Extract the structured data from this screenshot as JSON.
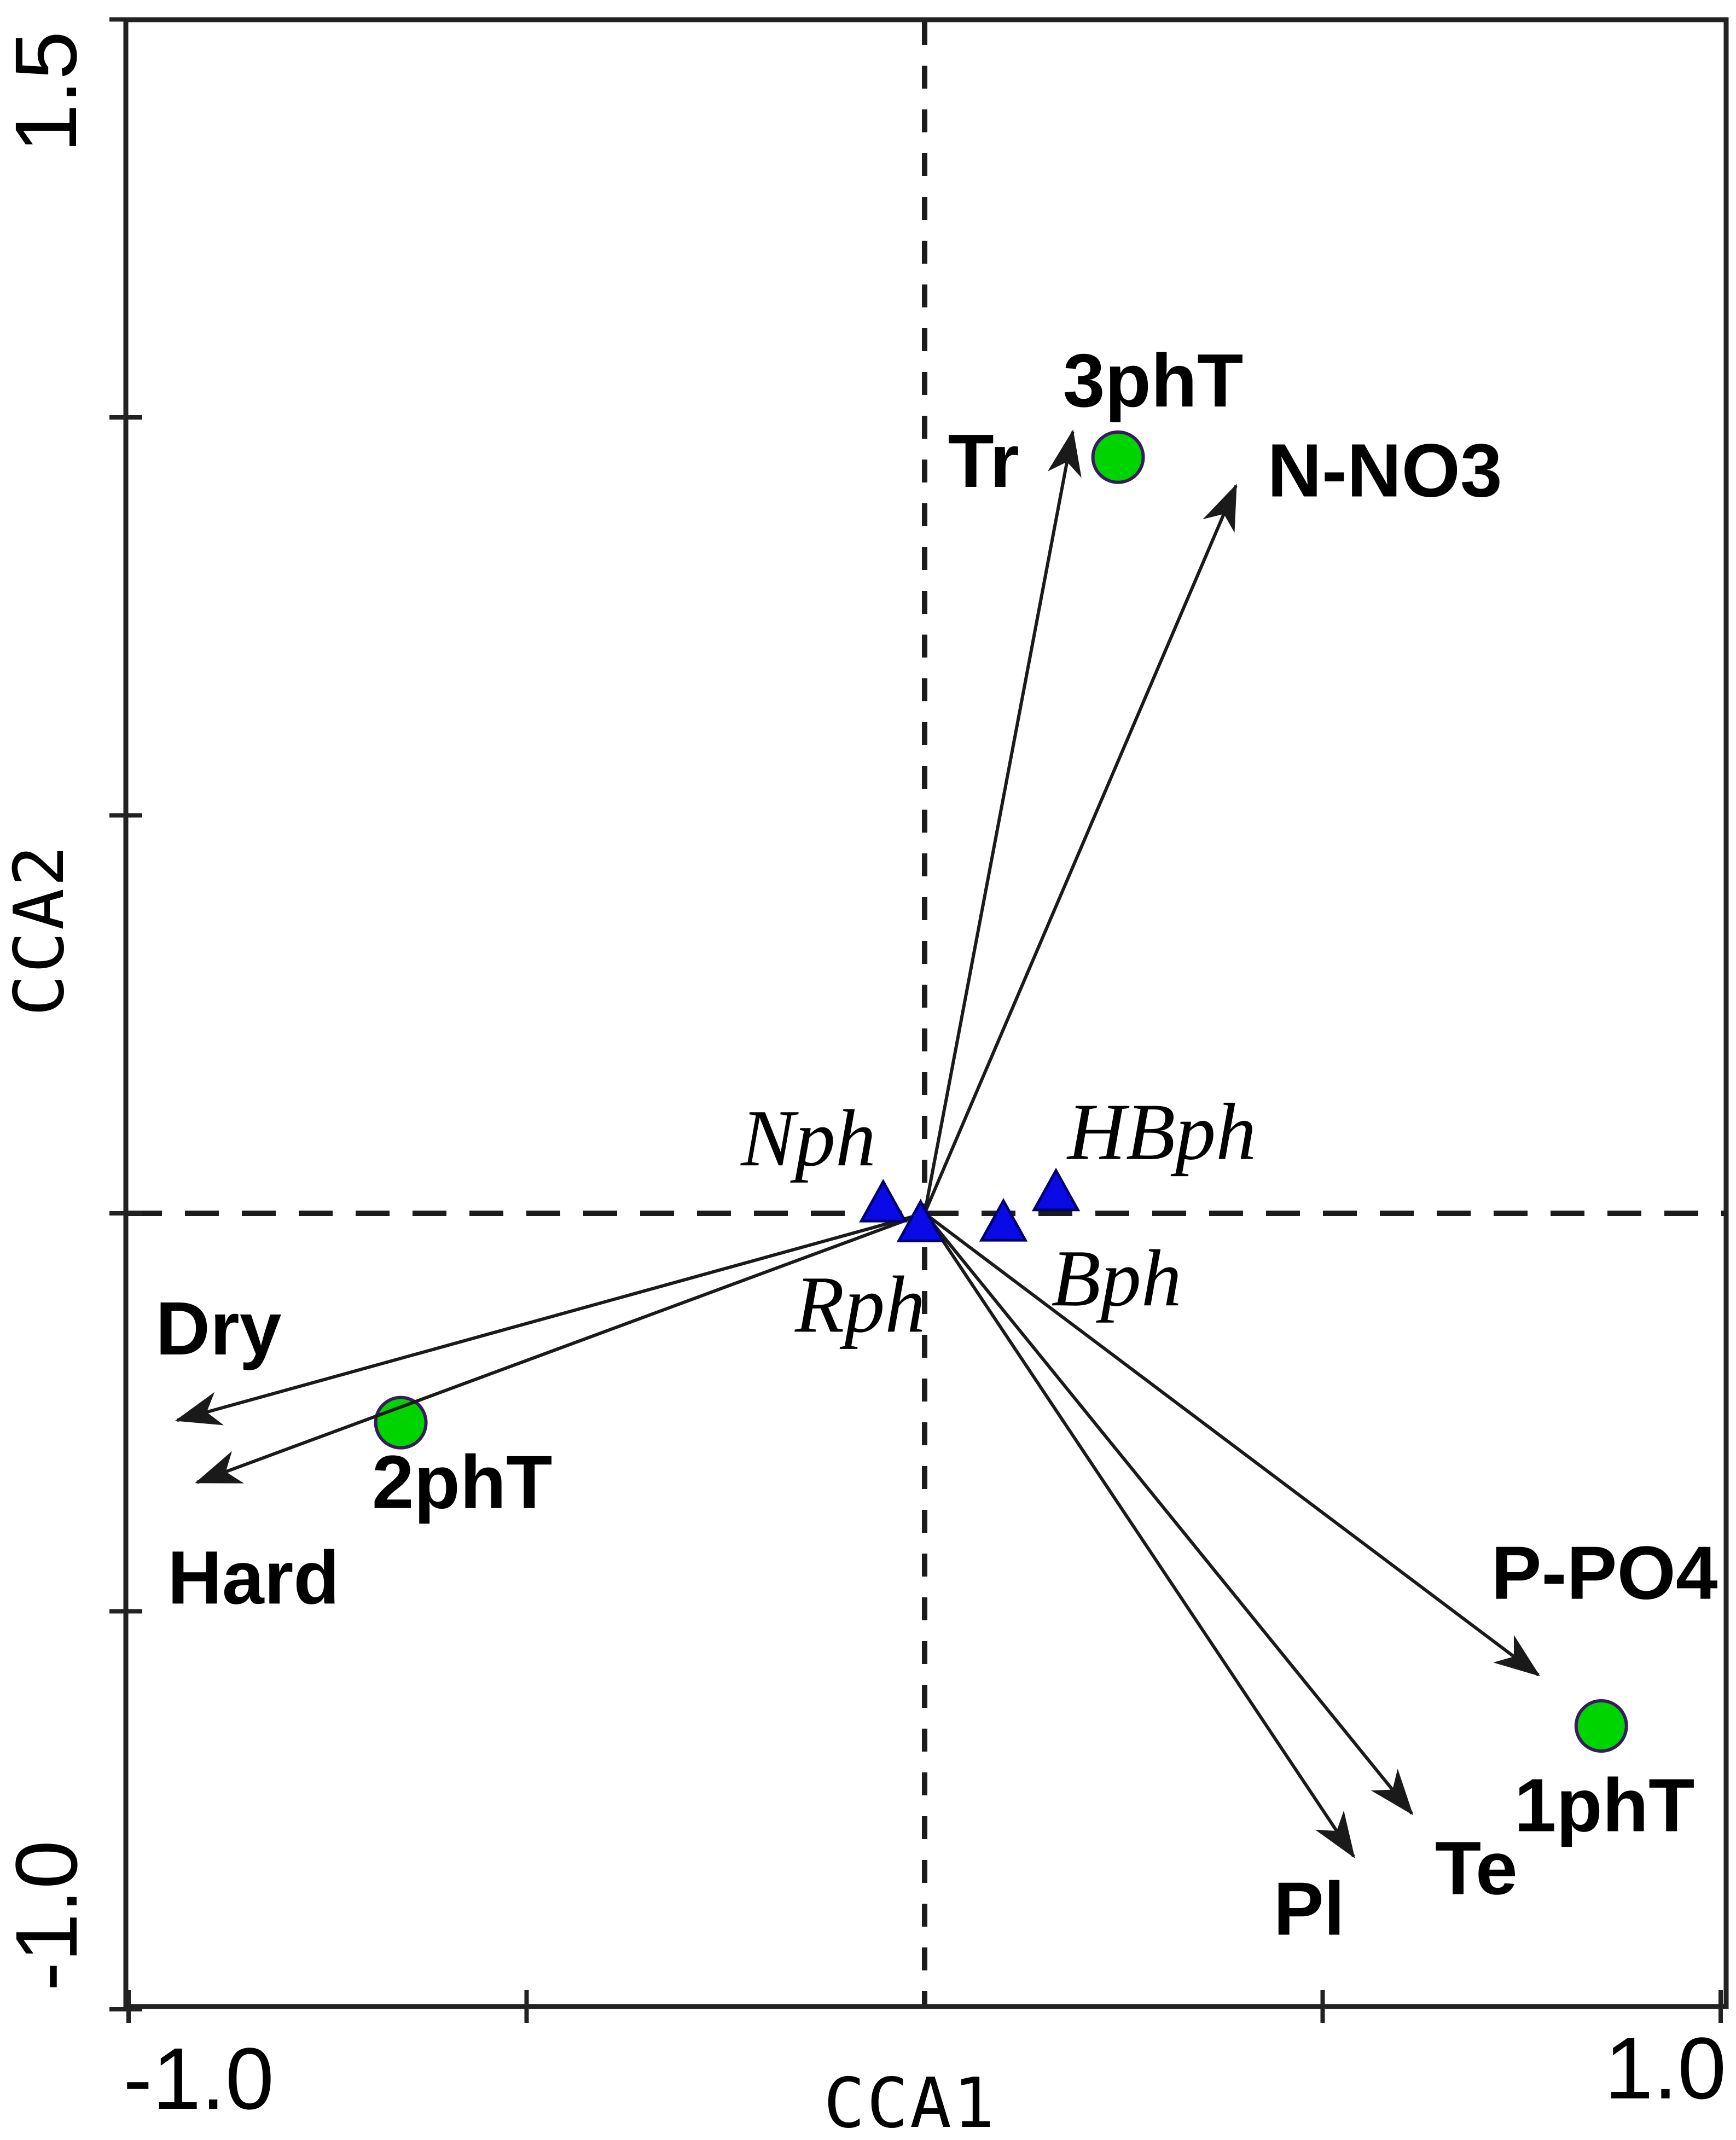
{
  "chart_data": {
    "type": "scatter",
    "subtype": "cca-ordination-biplot",
    "title": "",
    "xlabel": "CCA1",
    "ylabel": "CCA2",
    "xlim": [
      -1.0,
      1.01
    ],
    "ylim": [
      -1.0,
      1.5
    ],
    "grid": "dashed zero lines through origin",
    "legend_position": "none",
    "x_tick_values": [
      -1.0,
      -0.5,
      0.5,
      1.0
    ],
    "y_tick_values": [
      -1.0,
      -0.5,
      0.0,
      0.5,
      1.0,
      1.5
    ],
    "x_axis_end_labels": {
      "min": "-1.0",
      "max": "1.0"
    },
    "y_axis_end_labels": {
      "min": "-1.0",
      "max": "1.5"
    },
    "env_arrows": [
      {
        "name": "Tr",
        "x": 0.186,
        "y": 0.982,
        "label_x": 0.074,
        "label_y": 0.945
      },
      {
        "name": "N-NO3",
        "x": 0.391,
        "y": 0.914,
        "label_x": 0.578,
        "label_y": 0.933
      },
      {
        "name": "Dry",
        "x": -0.939,
        "y": -0.26,
        "label_x": -0.887,
        "label_y": -0.145
      },
      {
        "name": "Hard",
        "x": -0.914,
        "y": -0.338,
        "label_x": -0.843,
        "label_y": -0.458
      },
      {
        "name": "P-PO4",
        "x": 0.771,
        "y": -0.58,
        "label_x": 0.854,
        "label_y": -0.452
      },
      {
        "name": "Te",
        "x": 0.612,
        "y": -0.754,
        "label_x": 0.693,
        "label_y": -0.823
      },
      {
        "name": "Pl",
        "x": 0.539,
        "y": -0.808,
        "label_x": 0.483,
        "label_y": -0.874
      }
    ],
    "samples": [
      {
        "name": "3phT",
        "x": 0.243,
        "y": 0.95,
        "label_x": 0.287,
        "label_y": 1.046
      },
      {
        "name": "2phT",
        "x": -0.658,
        "y": -0.263,
        "label_x": -0.581,
        "label_y": -0.338
      },
      {
        "name": "1phT",
        "x": 0.85,
        "y": -0.644,
        "label_x": 0.854,
        "label_y": -0.744
      }
    ],
    "species": [
      {
        "name": "Nph",
        "x": -0.052,
        "y": 0.015,
        "label_x": -0.146,
        "label_y": 0.094
      },
      {
        "name": "Rph",
        "x": -0.005,
        "y": -0.01,
        "label_x": -0.081,
        "label_y": -0.115
      },
      {
        "name": "Bph",
        "x": 0.099,
        "y": -0.009,
        "label_x": 0.241,
        "label_y": -0.082
      },
      {
        "name": "HBph",
        "x": 0.165,
        "y": 0.029,
        "label_x": 0.298,
        "label_y": 0.102
      }
    ],
    "colors": {
      "sample_fill": "#00D400",
      "sample_stroke": "#3A1A5E",
      "species_fill": "#0A0AE6",
      "species_stroke": "#000070",
      "arrow_color": "#1A1A1A",
      "axis_color": "#222222",
      "dash_color": "#1C1C1C",
      "text_color": "#000000"
    }
  }
}
